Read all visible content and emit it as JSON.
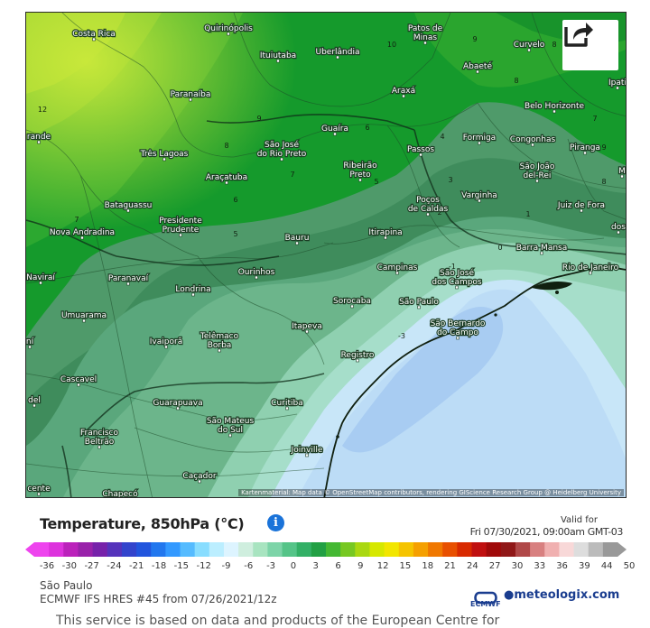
{
  "map": {
    "attribution": "Kartenmaterial: Map data © OpenStreetMap contributors, rendering GIScience Research Group @ Heidelberg University",
    "cities": [
      {
        "name": "Costa Rica",
        "lines": [
          "Costa Rica"
        ]
      },
      {
        "name": "Quirinópolis",
        "lines": [
          "Quirinópolis"
        ]
      },
      {
        "name": "Patos de Minas",
        "lines": [
          "Patos de",
          "Minas"
        ]
      },
      {
        "name": "Curvelo",
        "lines": [
          "Curvelo"
        ]
      },
      {
        "name": "Ituiutaba",
        "lines": [
          "Ituiutaba"
        ]
      },
      {
        "name": "Uberlândia",
        "lines": [
          "Uberlândia"
        ]
      },
      {
        "name": "Abaeté",
        "lines": [
          "Abaeté"
        ]
      },
      {
        "name": "Ipati",
        "lines": [
          "Ipati"
        ]
      },
      {
        "name": "Paranaíba",
        "lines": [
          "Paranaíba"
        ]
      },
      {
        "name": "Araxá",
        "lines": [
          "Araxá"
        ]
      },
      {
        "name": "Belo Horizonte",
        "lines": [
          "Belo Horizonte"
        ]
      },
      {
        "name": "Grande",
        "lines": [
          "rande"
        ]
      },
      {
        "name": "Guaíra",
        "lines": [
          "Guaíra"
        ]
      },
      {
        "name": "Formiga",
        "lines": [
          "Formiga"
        ]
      },
      {
        "name": "Congonhas",
        "lines": [
          "Congonhas"
        ]
      },
      {
        "name": "São José do Rio Preto",
        "lines": [
          "São José",
          "do Rio Preto"
        ]
      },
      {
        "name": "Passos",
        "lines": [
          "Passos"
        ]
      },
      {
        "name": "Piranga",
        "lines": [
          "Piranga"
        ]
      },
      {
        "name": "Três Lagoas",
        "lines": [
          "Três Lagoas"
        ]
      },
      {
        "name": "Ribeirão Preto",
        "lines": [
          "Ribeirão",
          "Preto"
        ]
      },
      {
        "name": "São João del-Rei",
        "lines": [
          "São João",
          "del-Rei"
        ]
      },
      {
        "name": "Araçatuba",
        "lines": [
          "Araçatuba"
        ]
      },
      {
        "name": "Varginha",
        "lines": [
          "Varginha"
        ]
      },
      {
        "name": "Bataguassu",
        "lines": [
          "Bataguassu"
        ]
      },
      {
        "name": "Poços de Caldas",
        "lines": [
          "Poços",
          "de Caldas"
        ]
      },
      {
        "name": "Juiz de Fora",
        "lines": [
          "Juiz de Fora"
        ]
      },
      {
        "name": "Presidente Prudente",
        "lines": [
          "Presidente",
          "Prudente"
        ]
      },
      {
        "name": "Nova Andradina",
        "lines": [
          "Nova Andradina"
        ]
      },
      {
        "name": "Bauru",
        "lines": [
          "Bauru"
        ]
      },
      {
        "name": "Itirapina",
        "lines": [
          "Itirapina"
        ]
      },
      {
        "name": "Barra Mansa",
        "lines": [
          "Barra Mansa"
        ]
      },
      {
        "name": "Campinas",
        "lines": [
          "Campinas"
        ]
      },
      {
        "name": "São José dos Campos",
        "lines": [
          "São José",
          "dos Campos"
        ]
      },
      {
        "name": "Rio de Janeiro",
        "lines": [
          "Rio de Janeiro"
        ]
      },
      {
        "name": "Naviraí",
        "lines": [
          "Naviraí"
        ]
      },
      {
        "name": "Paranavaí",
        "lines": [
          "Paranavaí"
        ]
      },
      {
        "name": "Ourinhos",
        "lines": [
          "Ourinhos"
        ]
      },
      {
        "name": "Londrina",
        "lines": [
          "Londrina"
        ]
      },
      {
        "name": "Sorocaba",
        "lines": [
          "Sorocaba"
        ]
      },
      {
        "name": "São Paulo",
        "lines": [
          "São Paulo"
        ]
      },
      {
        "name": "Umuarama",
        "lines": [
          "Umuarama"
        ]
      },
      {
        "name": "São Bernardo do Campo",
        "lines": [
          "São Bernardo",
          "do Campo"
        ]
      },
      {
        "name": "Itapeva",
        "lines": [
          "Itapeva"
        ]
      },
      {
        "name": "Telêmaco Borba",
        "lines": [
          "Telêmaco",
          "Borba"
        ]
      },
      {
        "name": "Ivaiporã",
        "lines": [
          "Ivaiporã"
        ]
      },
      {
        "name": "Registro",
        "lines": [
          "Registro"
        ]
      },
      {
        "name": "Cascavel",
        "lines": [
          "Cascavel"
        ]
      },
      {
        "name": "Curitiba",
        "lines": [
          "Curitiba"
        ]
      },
      {
        "name": "Guarapuava",
        "lines": [
          "Guarapuava"
        ]
      },
      {
        "name": "São Mateus do Sul",
        "lines": [
          "São Mateus",
          "do Sul"
        ]
      },
      {
        "name": "Francisco Beltrão",
        "lines": [
          "Francisco",
          "Beltrão"
        ]
      },
      {
        "name": "Joinville",
        "lines": [
          "Joinville"
        ]
      },
      {
        "name": "Caçador",
        "lines": [
          "Caçador"
        ]
      },
      {
        "name": "Chapecó",
        "lines": [
          "Chapecó"
        ]
      },
      {
        "name": "cente",
        "lines": [
          "cente"
        ]
      },
      {
        "name": "del",
        "lines": [
          "del"
        ]
      },
      {
        "name": "dos",
        "lines": [
          "dos"
        ]
      },
      {
        "name": "M",
        "lines": [
          "M"
        ]
      },
      {
        "name": "ní",
        "lines": [
          "ní"
        ]
      }
    ],
    "isotherm_labels": [
      "12",
      "10",
      "9",
      "8",
      "9",
      "8",
      "7",
      "6",
      "5",
      "4",
      "3",
      "2",
      "1",
      "0",
      "-1",
      "-3",
      "6",
      "7",
      "5",
      "8",
      "7",
      "9",
      "8"
    ]
  },
  "legend": {
    "title": "Temperature, 850hPa (°C)",
    "valid_for": "Valid for",
    "valid_time": "Fri 07/30/2021, 09:00am GMT-03",
    "colors": [
      "#ee44ee",
      "#dd33dd",
      "#bb22bb",
      "#9922aa",
      "#7722aa",
      "#5533bb",
      "#3344cc",
      "#2255dd",
      "#2277ee",
      "#3399ff",
      "#55bbff",
      "#88ddff",
      "#bbeeff",
      "#ddf4ff",
      "#cfeede",
      "#a8e4c0",
      "#7dd4a8",
      "#55c488",
      "#33b066",
      "#22a044",
      "#44b833",
      "#77c822",
      "#aad811",
      "#d6e800",
      "#f2e600",
      "#f5c400",
      "#f5a000",
      "#f07800",
      "#e85000",
      "#d82a00",
      "#c01010",
      "#a00a0a",
      "#901818",
      "#b04848",
      "#d88080",
      "#f0b0b0",
      "#f8d8d8",
      "#dddddd",
      "#bbbbbb",
      "#999999"
    ],
    "ticks": [
      "-36",
      "-30",
      "-27",
      "-24",
      "-21",
      "-18",
      "-15",
      "-12",
      "-9",
      "-6",
      "-3",
      "0",
      "3",
      "6",
      "9",
      "12",
      "15",
      "18",
      "21",
      "24",
      "27",
      "30",
      "33",
      "36",
      "39",
      "44",
      "50"
    ],
    "region": "São Paulo",
    "model": "ECMWF IFS HRES #45 from 07/26/2021/12z",
    "ecmwf_label": "ECMWF",
    "brand": "meteologix.com"
  },
  "footer": "This service is based on data and products of the European Centre for"
}
